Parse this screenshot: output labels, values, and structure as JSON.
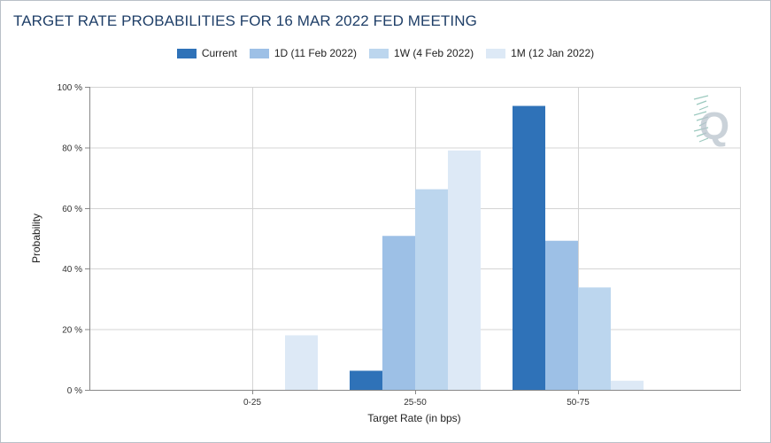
{
  "chart_data": {
    "type": "bar",
    "title": "TARGET RATE PROBABILITIES FOR 16 MAR 2022 FED MEETING",
    "xlabel": "Target Rate (in bps)",
    "ylabel": "Probability",
    "categories": [
      "0-25",
      "25-50",
      "50-75"
    ],
    "ylim": [
      0,
      100
    ],
    "yticks": [
      0,
      20,
      40,
      60,
      80,
      100
    ],
    "ytick_labels": [
      "0 %",
      "20 %",
      "40 %",
      "60 %",
      "80 %",
      "100 %"
    ],
    "grid": true,
    "legend_position": "top-center",
    "series": [
      {
        "name": "Current",
        "color": "#2f72b8",
        "values": [
          0,
          6.3,
          93.7
        ]
      },
      {
        "name": "1D (11 Feb 2022)",
        "color": "#9dc0e6",
        "values": [
          0,
          50.8,
          49.2
        ]
      },
      {
        "name": "1W (4 Feb 2022)",
        "color": "#bcd6ee",
        "values": [
          0,
          66.2,
          33.8
        ]
      },
      {
        "name": "1M (12 Jan 2022)",
        "color": "#dde9f6",
        "values": [
          18.0,
          79.0,
          3.0
        ]
      }
    ]
  },
  "watermark": {
    "text": "Q"
  }
}
